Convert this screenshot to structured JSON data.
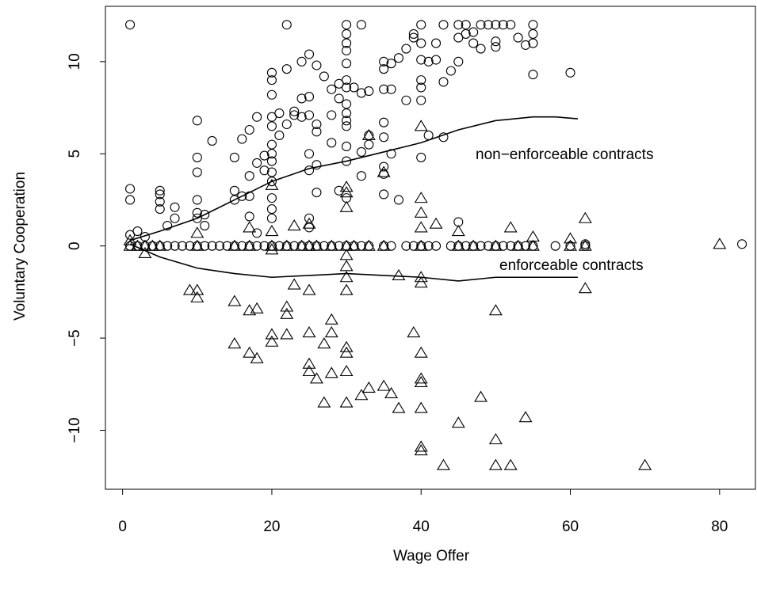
{
  "chart_data": {
    "type": "scatter",
    "xlabel": "Wage Offer",
    "ylabel": "Voluntary Cooperation",
    "xlim": [
      -2.3,
      84.8
    ],
    "ylim": [
      -13.2,
      13.0
    ],
    "xticks": [
      0,
      20,
      40,
      60,
      80
    ],
    "yticks": [
      {
        "value": -10,
        "label": "−10"
      },
      {
        "value": -5,
        "label": "−5"
      },
      0,
      5,
      10
    ],
    "color": "#000000",
    "series": [
      {
        "marker": "circle",
        "x": [
          1,
          1,
          1,
          1,
          2,
          3,
          5,
          5,
          5,
          5,
          6,
          7,
          7,
          10,
          10,
          10,
          10,
          10,
          10,
          11,
          11,
          12,
          15,
          15,
          15,
          16,
          16,
          17,
          17,
          17,
          17,
          18,
          18,
          18,
          19,
          19,
          20,
          20,
          20,
          20,
          20,
          20,
          20,
          20,
          20,
          20,
          20,
          20,
          20,
          21,
          21,
          22,
          22,
          22,
          23,
          23,
          24,
          24,
          24,
          25,
          25,
          25,
          25,
          25,
          25,
          25,
          26,
          26,
          26,
          26,
          26,
          27,
          28,
          28,
          28,
          29,
          29,
          29,
          30,
          30,
          30,
          30,
          30,
          30,
          30,
          30,
          30,
          30,
          30,
          30,
          30,
          30,
          31,
          32,
          32,
          32,
          32,
          33,
          33,
          33,
          35,
          35,
          35,
          35,
          35,
          35,
          35,
          35,
          36,
          36,
          36,
          37,
          37,
          38,
          38,
          39,
          39,
          40,
          40,
          40,
          40,
          40,
          40,
          40,
          41,
          41,
          42,
          42,
          43,
          43,
          43,
          44,
          45,
          45,
          45,
          45,
          46,
          46,
          47,
          47,
          48,
          48,
          49,
          50,
          50,
          50,
          51,
          52,
          53,
          54,
          55,
          55,
          55,
          55,
          60,
          62,
          83,
          1,
          2,
          3,
          4,
          5,
          6,
          7,
          8,
          9,
          10,
          11,
          12,
          13,
          14,
          15,
          16,
          17,
          18,
          19,
          20,
          21,
          22,
          23,
          24,
          25,
          26,
          27,
          28,
          29,
          30,
          31,
          32,
          33,
          35,
          36,
          38,
          39,
          40,
          41,
          42,
          44,
          45,
          46,
          47,
          48,
          49,
          50,
          51,
          52,
          53,
          54,
          55,
          58,
          60,
          62
        ],
        "values": [
          12,
          3.1,
          2.5,
          0.6,
          0.8,
          0.5,
          3,
          2.8,
          2.4,
          2,
          1.1,
          1.5,
          2.1,
          6.8,
          4.8,
          4,
          2.5,
          1.8,
          1.5,
          1.7,
          1.1,
          5.7,
          4.8,
          3,
          2.5,
          2.7,
          5.8,
          6.3,
          3.8,
          2.7,
          1.6,
          7,
          4.5,
          0.7,
          4.9,
          4.1,
          9.4,
          9,
          8.2,
          7,
          6.5,
          5.5,
          5,
          4.6,
          4,
          3.5,
          2.6,
          2,
          1.5,
          6,
          7.2,
          12,
          9.6,
          6.6,
          7.1,
          7.3,
          10,
          8,
          7,
          10.4,
          8.1,
          7.1,
          5,
          4.1,
          1.5,
          1,
          9.8,
          6.6,
          6.2,
          4.4,
          2.9,
          9.2,
          8.5,
          7.1,
          5.6,
          8.8,
          8,
          3,
          12,
          11.5,
          11,
          10.6,
          9.9,
          9,
          8.6,
          7.7,
          7.2,
          6.8,
          6.5,
          5.4,
          4.6,
          2.6,
          8.6,
          12,
          8.3,
          5.1,
          3.8,
          8.4,
          6,
          5.5,
          10,
          9.6,
          8.5,
          6.7,
          5.9,
          4.3,
          3.9,
          2.8,
          9.9,
          8.5,
          5,
          10.2,
          2.5,
          10.7,
          7.9,
          11.5,
          11.3,
          12,
          11,
          10.1,
          9,
          8.6,
          7.9,
          4.8,
          6,
          10,
          11,
          10.1,
          12,
          8.9,
          5.9,
          9.5,
          12,
          11.3,
          10,
          1.3,
          12,
          11.5,
          11.6,
          11,
          12,
          10.7,
          12,
          12,
          11.1,
          10.8,
          12,
          12,
          11.3,
          10.9,
          12,
          11.5,
          11,
          9.3,
          9.4,
          0.1,
          0.1,
          0,
          0,
          0,
          0,
          0,
          0,
          0,
          0,
          0,
          0,
          0,
          0,
          0,
          0,
          0,
          0,
          0,
          0,
          0,
          0,
          0,
          0,
          0,
          0,
          0,
          0,
          0,
          0,
          0,
          0,
          0,
          0,
          0,
          0,
          0,
          0,
          0,
          0,
          0,
          0,
          0,
          0,
          0,
          0,
          0,
          0,
          0,
          0,
          0,
          0,
          0,
          0,
          0,
          0,
          0
        ]
      },
      {
        "marker": "triangle",
        "x": [
          1,
          3,
          9,
          10,
          10,
          10,
          15,
          15,
          17,
          17,
          17,
          18,
          18,
          20,
          20,
          20,
          20,
          20,
          22,
          22,
          22,
          23,
          23,
          25,
          25,
          25,
          25,
          25,
          26,
          27,
          27,
          28,
          28,
          28,
          30,
          30,
          30,
          30,
          30,
          30,
          30,
          30,
          30,
          30,
          30,
          32,
          33,
          33,
          35,
          35,
          36,
          37,
          37,
          39,
          40,
          40,
          40,
          40,
          40,
          40,
          40,
          40,
          40,
          40,
          40,
          40,
          42,
          43,
          45,
          45,
          48,
          50,
          50,
          50,
          52,
          52,
          54,
          55,
          60,
          62,
          62,
          70,
          80,
          1,
          2,
          3,
          4,
          5,
          10,
          15,
          17,
          20,
          22,
          24,
          25,
          26,
          28,
          30,
          31,
          33,
          35,
          40,
          45,
          47,
          50,
          53,
          55,
          60,
          62
        ],
        "values": [
          0.3,
          -0.4,
          -2.4,
          -2.4,
          -2.8,
          0.7,
          -3,
          -5.3,
          -3.5,
          -5.8,
          1,
          -3.4,
          -6.1,
          -4.8,
          -5.2,
          3.3,
          0.8,
          -0.2,
          -3.3,
          -3.7,
          -4.8,
          -2.1,
          1.1,
          -4.7,
          -6.4,
          -6.8,
          -2.4,
          1.2,
          -7.2,
          -5.3,
          -8.5,
          -4,
          -4.7,
          -6.9,
          3.2,
          2.9,
          2.1,
          -0.5,
          -1.1,
          -1.7,
          -2.4,
          -5.5,
          -5.8,
          -6.8,
          -8.5,
          -8.1,
          6,
          -7.7,
          4,
          -7.6,
          -8,
          -1.6,
          -8.8,
          -4.7,
          6.5,
          2.6,
          1.8,
          1,
          -1.7,
          -2,
          -5.8,
          -7.2,
          -7.4,
          -8.8,
          -10.9,
          -11.1,
          1.2,
          -11.9,
          0.8,
          -9.6,
          -8.2,
          -3.5,
          -10.5,
          -11.9,
          1,
          -11.9,
          -9.3,
          0.5,
          0.4,
          1.5,
          -2.3,
          -11.9,
          0.1,
          0,
          0,
          0,
          0,
          0,
          0,
          0,
          0,
          0,
          0,
          0,
          0,
          0,
          0,
          0,
          0,
          0,
          0,
          0,
          0,
          0,
          0,
          0,
          0,
          0,
          0
        ]
      }
    ],
    "curves": [
      {
        "name": "non−enforceable contracts",
        "x": [
          1,
          5,
          10,
          15,
          20,
          25,
          30,
          35,
          40,
          45,
          50,
          55,
          58,
          61
        ],
        "values": [
          0.3,
          0.8,
          1.5,
          2.5,
          3.5,
          4.2,
          4.6,
          5.1,
          5.6,
          6.3,
          6.8,
          7,
          7,
          6.9
        ]
      },
      {
        "name": "enforceable contracts",
        "x": [
          1,
          5,
          10,
          15,
          20,
          25,
          30,
          35,
          40,
          45,
          50,
          55,
          61
        ],
        "values": [
          0.1,
          -0.6,
          -1.2,
          -1.5,
          -1.7,
          -1.6,
          -1.5,
          -1.6,
          -1.7,
          -1.9,
          -1.7,
          -1.7,
          -1.7
        ]
      }
    ]
  }
}
